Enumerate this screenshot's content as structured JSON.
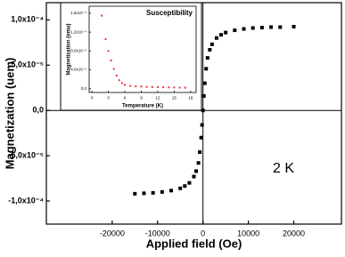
{
  "chart_data": [
    {
      "type": "scatter",
      "xlabel": "Applied field (Oe)",
      "ylabel": "Magnetization (uem)",
      "annotation": "2 K",
      "color": "#000000",
      "x": [
        -15000,
        -13000,
        -11000,
        -9000,
        -7000,
        -5000,
        -4000,
        -3000,
        -2000,
        -1500,
        -1000,
        -700,
        -400,
        -200,
        0,
        200,
        400,
        700,
        1000,
        1500,
        2000,
        3000,
        4000,
        5000,
        7000,
        9000,
        11000,
        13000,
        15000,
        17000,
        20000
      ],
      "values": [
        -9.2e-05,
        -9.15e-05,
        -9.1e-05,
        -9e-05,
        -8.85e-05,
        -8.6e-05,
        -8.35e-05,
        -8e-05,
        -7.3e-05,
        -6.7e-05,
        -5.8e-05,
        -4.6e-05,
        -3e-05,
        -1.6e-05,
        0,
        1.6e-05,
        3e-05,
        4.6e-05,
        5.8e-05,
        6.7e-05,
        7.3e-05,
        8e-05,
        8.35e-05,
        8.6e-05,
        8.85e-05,
        9e-05,
        9.1e-05,
        9.15e-05,
        9.2e-05,
        9.2e-05,
        9.25e-05
      ],
      "xlim": [
        -34500,
        30500
      ],
      "xticks": [
        -20000,
        -10000,
        0,
        10000,
        20000
      ],
      "ylim": [
        -0.0001255,
        0.000119
      ],
      "yticks": [
        {
          "value": -0.0001,
          "label": "-1,0x10⁻⁴"
        },
        {
          "value": -5e-05,
          "label": "-5,0x10⁻⁵"
        },
        {
          "value": 0,
          "label": "0,0"
        },
        {
          "value": 5e-05,
          "label": "5,0x10⁻⁵"
        },
        {
          "value": 0.0001,
          "label": "1,0x10⁻⁴"
        }
      ]
    },
    {
      "type": "scatter",
      "xlabel": "Temperature (K)",
      "ylabel": "Magnetization (emu)",
      "x": [
        1.8,
        2.5,
        3,
        3.5,
        4,
        4.5,
        5,
        5.5,
        6,
        7,
        8,
        9,
        10,
        11,
        12,
        13,
        14,
        15,
        16,
        17
      ],
      "series": [
        {
          "name": "Susceptibility",
          "color": "#e8304a",
          "values": [
            0.000155,
            0.000105,
            8e-05,
            6e-05,
            4.2e-05,
            2.8e-05,
            1.8e-05,
            1.2e-05,
            8e-06,
            6e-06,
            5e-06,
            4.5e-06,
            4e-06,
            3.6e-06,
            3.3e-06,
            3e-06,
            2.8e-06,
            2.6e-06,
            2.4e-06,
            2.2e-06
          ]
        }
      ],
      "xlim": [
        -0.5,
        19
      ],
      "xticks": [
        0,
        3,
        6,
        9,
        12,
        15,
        18
      ],
      "ylim": [
        -8e-06,
        0.000175
      ],
      "yticks": [
        {
          "value": 0,
          "label": "0,0"
        },
        {
          "value": 4e-05,
          "label": "4,0x10⁻⁵"
        },
        {
          "value": 8e-05,
          "label": "8,0x10⁻⁵"
        },
        {
          "value": 0.00012,
          "label": "1,2x10⁻⁴"
        },
        {
          "value": 0.00016,
          "label": "1,6x10⁻⁴"
        }
      ]
    }
  ]
}
